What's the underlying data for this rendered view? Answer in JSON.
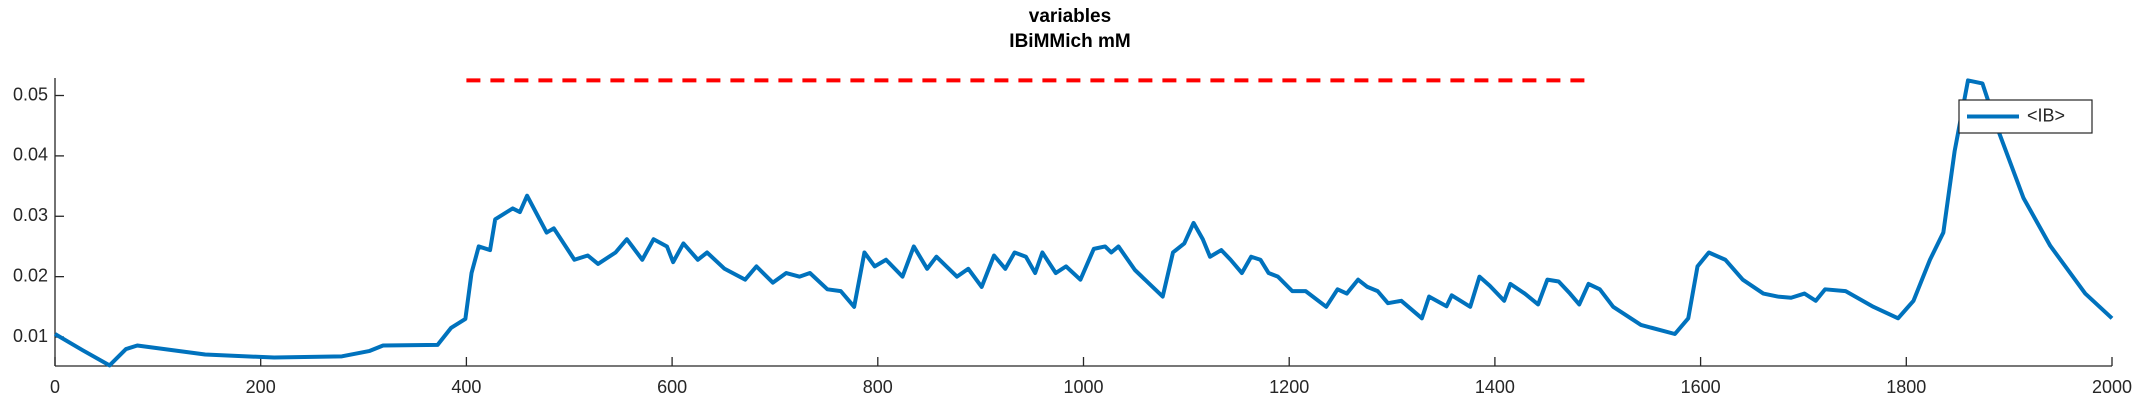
{
  "chart_data": {
    "type": "line",
    "title": "variables",
    "subtitle": "IBiMMich mM",
    "xlim": [
      0,
      2000
    ],
    "ylim": [
      0.0052,
      0.0529
    ],
    "xticks": [
      0,
      200,
      400,
      600,
      800,
      1000,
      1200,
      1400,
      1600,
      1800,
      2000
    ],
    "yticks": [
      0.01,
      0.02,
      0.03,
      0.04,
      0.05
    ],
    "grid": false,
    "legend": "upper right",
    "series": [
      {
        "name": "<IB>",
        "color": "#0072bd",
        "dash": false,
        "x": [
          0,
          27,
          53,
          69,
          80,
          146,
          213,
          279,
          306,
          319,
          372,
          385,
          399,
          405,
          412,
          423,
          428,
          445,
          452,
          459,
          478,
          485,
          505,
          518,
          528,
          545,
          556,
          571,
          582,
          595,
          601,
          611,
          625,
          634,
          651,
          671,
          682,
          698,
          711,
          724,
          734,
          751,
          764,
          777,
          787,
          797,
          808,
          824,
          835,
          848,
          857,
          877,
          888,
          901,
          913,
          924,
          933,
          944,
          953,
          960,
          973,
          983,
          997,
          1010,
          1021,
          1027,
          1034,
          1050,
          1077,
          1087,
          1098,
          1107,
          1116,
          1123,
          1134,
          1143,
          1154,
          1163,
          1172,
          1180,
          1189,
          1203,
          1216,
          1236,
          1247,
          1256,
          1267,
          1276,
          1286,
          1296,
          1309,
          1329,
          1336,
          1353,
          1358,
          1376,
          1385,
          1395,
          1409,
          1415,
          1429,
          1442,
          1451,
          1462,
          1473,
          1482,
          1491,
          1502,
          1515,
          1542,
          1575,
          1588,
          1597,
          1608,
          1624,
          1641,
          1661,
          1675,
          1688,
          1701,
          1712,
          1721,
          1741,
          1768,
          1792,
          1807,
          1823,
          1836,
          1847,
          1860,
          1874,
          1887,
          1914,
          1940,
          1974,
          2000
        ],
        "values": [
          0.0105,
          0.0078,
          0.0053,
          0.008,
          0.0086,
          0.0071,
          0.0066,
          0.0068,
          0.0077,
          0.0086,
          0.0087,
          0.0115,
          0.013,
          0.0206,
          0.025,
          0.0244,
          0.0295,
          0.0313,
          0.0307,
          0.0334,
          0.0273,
          0.028,
          0.0228,
          0.0235,
          0.0221,
          0.024,
          0.0262,
          0.0228,
          0.0262,
          0.025,
          0.0224,
          0.0255,
          0.0228,
          0.024,
          0.0213,
          0.0195,
          0.0217,
          0.019,
          0.0206,
          0.02,
          0.0206,
          0.0179,
          0.0176,
          0.015,
          0.024,
          0.0217,
          0.0228,
          0.02,
          0.025,
          0.0213,
          0.0233,
          0.02,
          0.0213,
          0.0183,
          0.0235,
          0.0213,
          0.024,
          0.0233,
          0.0206,
          0.024,
          0.0206,
          0.0217,
          0.0195,
          0.0246,
          0.025,
          0.024,
          0.025,
          0.0211,
          0.0167,
          0.024,
          0.0255,
          0.0289,
          0.0262,
          0.0233,
          0.0244,
          0.0228,
          0.0206,
          0.0233,
          0.0228,
          0.0206,
          0.02,
          0.0176,
          0.0176,
          0.015,
          0.0179,
          0.0172,
          0.0195,
          0.0183,
          0.0176,
          0.0156,
          0.016,
          0.0131,
          0.0167,
          0.0151,
          0.0169,
          0.015,
          0.02,
          0.0185,
          0.016,
          0.0188,
          0.0172,
          0.0154,
          0.0195,
          0.0192,
          0.0172,
          0.0154,
          0.0188,
          0.0179,
          0.015,
          0.012,
          0.0105,
          0.0131,
          0.0217,
          0.024,
          0.0228,
          0.0195,
          0.0172,
          0.0167,
          0.0165,
          0.0172,
          0.016,
          0.0179,
          0.0176,
          0.015,
          0.0131,
          0.016,
          0.0228,
          0.0273,
          0.0408,
          0.0525,
          0.052,
          0.0453,
          0.033,
          0.0251,
          0.0172,
          0.0131
        ]
      },
      {
        "color": "#ff0000",
        "dash": true,
        "x": [
          400,
          1490
        ],
        "values": [
          0.0525,
          0.0525
        ]
      }
    ]
  }
}
